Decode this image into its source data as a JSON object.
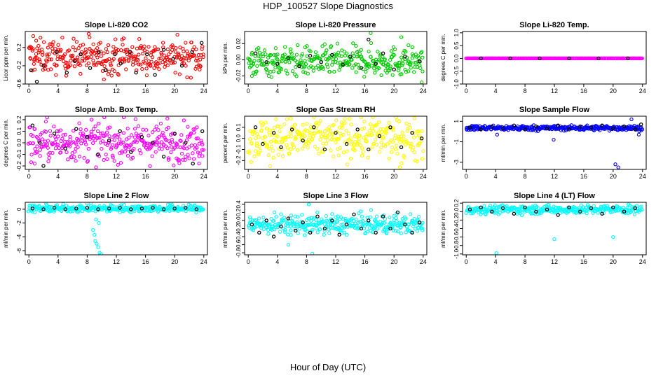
{
  "figure": {
    "title": "HDP_100527  Slope Diagnostics",
    "xlabel": "Hour of Day (UTC)"
  },
  "chart_data": [
    {
      "type": "scatter",
      "title": "Slope Li-820 CO2",
      "ylabel": "Licor ppm per min.",
      "color": "#ff0000",
      "xlim": [
        -0.5,
        24.5
      ],
      "ylim": [
        -0.6,
        0.55
      ],
      "xticks": [
        0,
        4,
        8,
        12,
        16,
        20,
        24
      ],
      "yticks": [
        -0.6,
        -0.2,
        0.2
      ],
      "ytick_labels": [
        "-0.6",
        "-0.2",
        "0.2"
      ],
      "spread": 0.18,
      "center": 0.0,
      "black_points": [
        [
          0.3,
          -0.3
        ],
        [
          1.1,
          -0.55
        ],
        [
          2.0,
          -0.2
        ],
        [
          3.8,
          0.1
        ],
        [
          5.2,
          -0.35
        ],
        [
          6.3,
          -0.1
        ],
        [
          7.1,
          0.05
        ],
        [
          8.4,
          -0.25
        ],
        [
          9.6,
          0.1
        ],
        [
          10.5,
          -0.3
        ],
        [
          11.8,
          0.05
        ],
        [
          12.6,
          -0.15
        ],
        [
          13.9,
          0.1
        ],
        [
          14.7,
          -0.35
        ],
        [
          16.2,
          0.05
        ],
        [
          17.3,
          -0.4
        ],
        [
          18.5,
          0.15
        ],
        [
          19.8,
          -0.05
        ],
        [
          21.0,
          -0.2
        ],
        [
          22.4,
          0.1
        ],
        [
          23.7,
          0.3
        ]
      ],
      "outliers": [
        [
          0.6,
          0.45
        ],
        [
          1.0,
          0.35
        ],
        [
          8.2,
          0.5
        ],
        [
          10.3,
          -0.5
        ],
        [
          13.0,
          0.4
        ]
      ]
    },
    {
      "type": "scatter",
      "title": "Slope Li-820 Pressure",
      "ylabel": "kPa per min.",
      "color": "#00cc00",
      "xlim": [
        -0.5,
        24.5
      ],
      "ylim": [
        -0.03,
        0.035
      ],
      "xticks": [
        0,
        4,
        8,
        12,
        16,
        20,
        24
      ],
      "yticks": [
        -0.02,
        0.0,
        0.02
      ],
      "ytick_labels": [
        "-0.02",
        "0.00",
        "0.02"
      ],
      "spread": 0.009,
      "center": -0.002,
      "black_points": [
        [
          1.0,
          0.008
        ],
        [
          2.5,
          -0.003
        ],
        [
          4.0,
          -0.005
        ],
        [
          5.5,
          0.002
        ],
        [
          7.0,
          -0.008
        ],
        [
          8.5,
          0.005
        ],
        [
          10.0,
          -0.003
        ],
        [
          11.5,
          0.006
        ],
        [
          13.0,
          -0.006
        ],
        [
          14.0,
          0.004
        ],
        [
          15.5,
          -0.01
        ],
        [
          16.5,
          0.025
        ],
        [
          17.5,
          -0.005
        ],
        [
          18.5,
          0.008
        ],
        [
          20.0,
          -0.012
        ],
        [
          21.5,
          0.004
        ],
        [
          23.5,
          -0.002
        ]
      ],
      "outliers": [
        [
          16.8,
          0.033
        ],
        [
          21.0,
          0.028
        ],
        [
          23.8,
          -0.028
        ],
        [
          0.5,
          -0.02
        ]
      ]
    },
    {
      "type": "scatter",
      "title": "Slope Li-820 Temp.",
      "ylabel": "degrees C per min.",
      "color": "#ff00ff",
      "xlim": [
        -0.5,
        24.5
      ],
      "ylim": [
        -1.0,
        1.05
      ],
      "xticks": [
        0,
        4,
        8,
        12,
        16,
        20,
        24
      ],
      "yticks": [
        -1.0,
        -0.5,
        0.0,
        0.5,
        1.0
      ],
      "ytick_labels": [
        "-1.0",
        "-0.5",
        "0.0",
        "0.5",
        "1.0"
      ],
      "spread": 0.0,
      "center": 0.0,
      "black_points": [
        [
          2.0,
          0.0
        ],
        [
          6.0,
          0.0
        ],
        [
          10.0,
          0.0
        ],
        [
          14.0,
          0.0
        ],
        [
          18.0,
          0.0
        ],
        [
          22.0,
          0.0
        ]
      ],
      "outliers": []
    },
    {
      "type": "scatter",
      "title": "Slope Amb. Box Temp.",
      "ylabel": "degrees C per min.",
      "color": "#ff00ff",
      "xlim": [
        -0.5,
        24.5
      ],
      "ylim": [
        -0.23,
        0.23
      ],
      "xticks": [
        0,
        4,
        8,
        12,
        16,
        20,
        24
      ],
      "yticks": [
        -0.2,
        -0.1,
        0.0,
        0.1,
        0.2
      ],
      "ytick_labels": [
        "-0.2",
        "-0.1",
        "0.0",
        "0.1",
        "0.2"
      ],
      "spread": 0.08,
      "center": 0.0,
      "black_points": [
        [
          0.5,
          0.15
        ],
        [
          1.5,
          0.0
        ],
        [
          2.0,
          -0.2
        ],
        [
          3.5,
          0.08
        ],
        [
          5.0,
          -0.05
        ],
        [
          6.5,
          0.12
        ],
        [
          8.0,
          0.05
        ],
        [
          9.5,
          -0.1
        ],
        [
          11.0,
          0.02
        ],
        [
          12.5,
          0.1
        ],
        [
          14.0,
          -0.08
        ],
        [
          15.5,
          0.05
        ],
        [
          17.0,
          0.0
        ],
        [
          18.5,
          -0.12
        ],
        [
          20.0,
          0.08
        ],
        [
          21.5,
          0.0
        ],
        [
          22.5,
          -0.18
        ],
        [
          23.8,
          0.1
        ]
      ],
      "outliers": [
        [
          0.8,
          -0.18
        ],
        [
          2.5,
          0.22
        ],
        [
          8.6,
          0.2
        ],
        [
          19.0,
          0.21
        ]
      ]
    },
    {
      "type": "scatter",
      "title": "Slope Gas Stream RH",
      "ylabel": "percent per min.",
      "color": "#ffff00",
      "xlim": [
        -0.5,
        24.5
      ],
      "ylim": [
        -0.28,
        0.2
      ],
      "xticks": [
        0,
        4,
        8,
        12,
        16,
        20,
        24
      ],
      "yticks": [
        -0.2,
        -0.1,
        0.0,
        0.1
      ],
      "ytick_labels": [
        "-0.2",
        "-0.1",
        "0.0",
        "0.1"
      ],
      "spread": 0.09,
      "center": 0.0,
      "black_points": [
        [
          1.0,
          0.1
        ],
        [
          2.0,
          -0.05
        ],
        [
          3.5,
          0.05
        ],
        [
          4.5,
          -0.08
        ],
        [
          6.0,
          0.08
        ],
        [
          7.5,
          -0.02
        ],
        [
          9.0,
          0.1
        ],
        [
          10.5,
          -0.1
        ],
        [
          12.0,
          0.05
        ],
        [
          13.5,
          -0.05
        ],
        [
          15.0,
          0.08
        ],
        [
          16.5,
          -0.1
        ],
        [
          18.0,
          0.02
        ],
        [
          19.5,
          0.1
        ],
        [
          21.0,
          -0.08
        ],
        [
          22.5,
          0.05
        ],
        [
          23.8,
          0.0
        ]
      ],
      "outliers": [
        [
          3.0,
          -0.25
        ],
        [
          20.8,
          -0.26
        ]
      ]
    },
    {
      "type": "scatter",
      "title": "Slope Sample Flow",
      "ylabel": "ml/min per min.",
      "color": "#0000ff",
      "xlim": [
        -0.5,
        24.5
      ],
      "ylim": [
        -3.7,
        1.5
      ],
      "xticks": [
        0,
        4,
        8,
        12,
        16,
        20,
        24
      ],
      "yticks": [
        -3,
        -1,
        1
      ],
      "ytick_labels": [
        "-3",
        "-1",
        "1"
      ],
      "spread": 0.12,
      "center": 0.35,
      "black_points": [
        [
          0.5,
          0.4
        ],
        [
          2.0,
          0.2
        ],
        [
          3.5,
          0.5
        ],
        [
          5.0,
          0.3
        ],
        [
          6.5,
          0.6
        ],
        [
          8.0,
          0.2
        ],
        [
          9.5,
          0.5
        ],
        [
          11.0,
          0.3
        ],
        [
          12.5,
          0.6
        ],
        [
          14.0,
          0.2
        ],
        [
          15.5,
          0.5
        ],
        [
          17.0,
          0.4
        ],
        [
          18.5,
          0.6
        ],
        [
          20.0,
          0.3
        ],
        [
          21.5,
          0.5
        ],
        [
          23.0,
          0.2
        ],
        [
          23.8,
          0.7
        ]
      ],
      "outliers": [
        [
          4.2,
          -0.3
        ],
        [
          11.9,
          -0.8
        ],
        [
          20.3,
          -3.2
        ],
        [
          20.7,
          -3.5
        ],
        [
          22.5,
          1.2
        ],
        [
          23.5,
          -0.3
        ]
      ]
    },
    {
      "type": "scatter",
      "title": "Slope Line 2 Flow",
      "ylabel": "ml/min per min.",
      "color": "#00ffff",
      "xlim": [
        -0.5,
        24.5
      ],
      "ylim": [
        -6.6,
        1.0
      ],
      "xticks": [
        0,
        4,
        8,
        12,
        16,
        20,
        24
      ],
      "yticks": [
        -6,
        -4,
        -2,
        0
      ],
      "ytick_labels": [
        "-6",
        "-4",
        "-2",
        "0"
      ],
      "spread": 0.25,
      "center": 0.1,
      "black_points": [
        [
          0.5,
          0.1
        ],
        [
          2.0,
          0.0
        ],
        [
          3.5,
          0.2
        ],
        [
          5.0,
          0.0
        ],
        [
          6.5,
          0.1
        ],
        [
          8.0,
          0.2
        ],
        [
          9.5,
          0.0
        ],
        [
          11.0,
          0.1
        ],
        [
          12.5,
          0.2
        ],
        [
          14.0,
          0.0
        ],
        [
          15.5,
          0.1
        ],
        [
          17.0,
          0.2
        ],
        [
          18.5,
          0.0
        ],
        [
          20.0,
          0.1
        ],
        [
          21.5,
          0.2
        ],
        [
          23.0,
          0.0
        ]
      ],
      "outliers": [
        [
          8.5,
          0.9
        ],
        [
          8.8,
          -3.0
        ],
        [
          9.0,
          -3.7
        ],
        [
          9.1,
          -4.6
        ],
        [
          9.3,
          -5.0
        ],
        [
          9.5,
          -5.5
        ],
        [
          9.7,
          -6.3
        ],
        [
          9.9,
          -6.5
        ],
        [
          9.2,
          -1.5
        ],
        [
          9.6,
          -2.0
        ],
        [
          19.5,
          0.9
        ]
      ]
    },
    {
      "type": "scatter",
      "title": "Slope Line 3 Flow",
      "ylabel": "ml/min per min.",
      "color": "#00ffff",
      "xlim": [
        -0.5,
        24.5
      ],
      "ylim": [
        -0.85,
        0.45
      ],
      "xticks": [
        0,
        4,
        8,
        12,
        16,
        20,
        24
      ],
      "yticks": [
        -0.8,
        -0.6,
        -0.4,
        -0.2,
        0.0,
        0.2,
        0.4
      ],
      "ytick_labels": [
        "-0.8",
        "-0.6",
        "-0.4",
        "-0.2",
        "0.0",
        "0.2",
        "0.4"
      ],
      "spread": 0.12,
      "center": -0.1,
      "black_points": [
        [
          0.5,
          -0.1
        ],
        [
          1.5,
          -0.3
        ],
        [
          2.5,
          0.0
        ],
        [
          3.5,
          -0.4
        ],
        [
          4.5,
          -0.15
        ],
        [
          5.5,
          0.05
        ],
        [
          6.5,
          -0.25
        ],
        [
          7.5,
          -0.05
        ],
        [
          8.5,
          -0.3
        ],
        [
          9.5,
          0.1
        ],
        [
          10.5,
          -0.2
        ],
        [
          11.5,
          0.0
        ],
        [
          12.5,
          -0.35
        ],
        [
          13.5,
          -0.1
        ],
        [
          14.5,
          0.15
        ],
        [
          15.5,
          -0.2
        ],
        [
          16.5,
          0.0
        ],
        [
          17.5,
          -0.3
        ],
        [
          18.5,
          0.1
        ],
        [
          19.5,
          -0.2
        ],
        [
          20.5,
          0.2
        ],
        [
          21.5,
          -0.1
        ],
        [
          22.5,
          -0.3
        ],
        [
          23.5,
          -0.05
        ]
      ],
      "outliers": [
        [
          8.3,
          0.4
        ],
        [
          8.8,
          -0.82
        ],
        [
          5.5,
          -0.6
        ]
      ]
    },
    {
      "type": "scatter",
      "title": "Slope Line 4 (LT) Flow",
      "ylabel": "ml/min per min.",
      "color": "#00ffff",
      "xlim": [
        -0.5,
        24.5
      ],
      "ylim": [
        -1.02,
        0.22
      ],
      "xticks": [
        0,
        4,
        8,
        12,
        16,
        20,
        24
      ],
      "yticks": [
        -1.0,
        -0.8,
        -0.6,
        -0.4,
        -0.2,
        0.0,
        0.2
      ],
      "ytick_labels": [
        "-1.0",
        "-0.8",
        "-0.6",
        "-0.4",
        "-0.2",
        "0.0",
        "0.2"
      ],
      "spread": 0.05,
      "center": 0.05,
      "black_points": [
        [
          0.5,
          0.05
        ],
        [
          2.0,
          0.1
        ],
        [
          3.5,
          0.0
        ],
        [
          5.0,
          0.08
        ],
        [
          6.5,
          -0.05
        ],
        [
          8.0,
          0.1
        ],
        [
          9.5,
          0.0
        ],
        [
          11.0,
          0.05
        ],
        [
          12.5,
          -0.08
        ],
        [
          14.0,
          0.1
        ],
        [
          15.5,
          0.0
        ],
        [
          17.0,
          0.08
        ],
        [
          18.5,
          -0.05
        ],
        [
          20.0,
          0.1
        ],
        [
          21.5,
          0.0
        ],
        [
          23.0,
          0.08
        ]
      ],
      "outliers": [
        [
          4.1,
          -0.98
        ],
        [
          12.0,
          -0.65
        ],
        [
          20.0,
          -0.6
        ]
      ]
    }
  ]
}
